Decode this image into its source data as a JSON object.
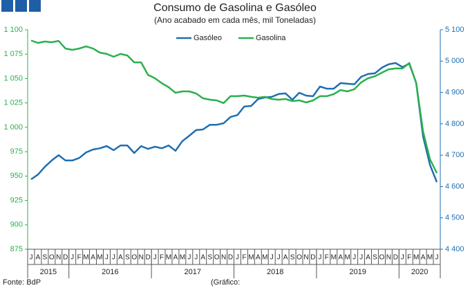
{
  "chart_data": {
    "type": "line",
    "title": "Consumo de Gasolina e Gasóleo",
    "subtitle": "(Ano acabado em cada mês, mil Toneladas)",
    "source": "Fonte: BdP",
    "footnote": "(Gráfico:",
    "categories": [
      "J",
      "A",
      "S",
      "O",
      "N",
      "D",
      "J",
      "F",
      "M",
      "A",
      "M",
      "J",
      "J",
      "A",
      "S",
      "O",
      "N",
      "D",
      "J",
      "F",
      "M",
      "A",
      "M",
      "J",
      "J",
      "A",
      "S",
      "O",
      "N",
      "D",
      "J",
      "F",
      "M",
      "A",
      "M",
      "J",
      "J",
      "A",
      "S",
      "O",
      "N",
      "D",
      "J",
      "F",
      "M",
      "A",
      "M",
      "J",
      "J",
      "A",
      "S",
      "O",
      "N",
      "D",
      "J",
      "F",
      "M",
      "A",
      "M",
      "J"
    ],
    "years": [
      "2015",
      "2016",
      "2017",
      "2018",
      "2019",
      "2020"
    ],
    "series": [
      {
        "name": "Gasóleo",
        "color": "#1f6eb0",
        "axis": "y2",
        "values": [
          4623,
          4638,
          4663,
          4683,
          4700,
          4683,
          4683,
          4691,
          4709,
          4718,
          4722,
          4729,
          4716,
          4731,
          4731,
          4707,
          4729,
          4720,
          4727,
          4722,
          4731,
          4714,
          4745,
          4762,
          4780,
          4782,
          4797,
          4797,
          4802,
          4822,
          4828,
          4855,
          4857,
          4879,
          4884,
          4886,
          4895,
          4897,
          4877,
          4899,
          4890,
          4888,
          4919,
          4912,
          4912,
          4930,
          4928,
          4926,
          4950,
          4959,
          4961,
          4979,
          4990,
          4994,
          4981,
          4992,
          4930,
          4760,
          4669,
          4614
        ]
      },
      {
        "name": "Gasolina",
        "color": "#2bb04e",
        "values": [
          1089,
          1086.5,
          1087.9,
          1087.2,
          1088.6,
          1080.8,
          1079.4,
          1080.8,
          1083,
          1080.8,
          1076.6,
          1075.2,
          1072.3,
          1075.2,
          1073.7,
          1066.6,
          1066.6,
          1053.8,
          1050.3,
          1045.3,
          1041.1,
          1035.4,
          1036.8,
          1036.8,
          1034.7,
          1029.7,
          1028.3,
          1027.6,
          1024.8,
          1031.9,
          1031.9,
          1032.6,
          1031.2,
          1030.4,
          1031.2,
          1029,
          1028.3,
          1029,
          1026.9,
          1027.6,
          1025.5,
          1027.6,
          1031.9,
          1031.9,
          1034,
          1038.2,
          1036.8,
          1039,
          1046.1,
          1050.3,
          1052.4,
          1056,
          1059.5,
          1060.3,
          1060.3,
          1065.9,
          1045.3,
          995.7,
          967.3,
          953.1
        ]
      }
    ],
    "ylim": [
      875,
      1100
    ],
    "yticks": [
      875,
      900,
      925,
      950,
      975,
      {
        "value": 1000,
        "label": "1 000"
      },
      {
        "value": 1025,
        "label": "1 025"
      },
      {
        "value": 1050,
        "label": "1 050"
      },
      {
        "value": 1075,
        "label": "1 075"
      },
      {
        "value": 1100,
        "label": "1 100"
      }
    ],
    "y2lim": [
      4400,
      5100
    ],
    "y2ticks": [
      {
        "value": 4400,
        "label": "4 400"
      },
      {
        "value": 4500,
        "label": "4 500"
      },
      {
        "value": 4600,
        "label": "4 600"
      },
      {
        "value": 4700,
        "label": "4 700"
      },
      {
        "value": 4800,
        "label": "4 800"
      },
      {
        "value": 4900,
        "label": "4 900"
      },
      {
        "value": 5000,
        "label": "5 000"
      },
      {
        "value": 5100,
        "label": "5 100"
      }
    ],
    "ycolor": "#2bb04e",
    "y2color": "#1f6eb0",
    "grid": false,
    "legend": "top"
  }
}
